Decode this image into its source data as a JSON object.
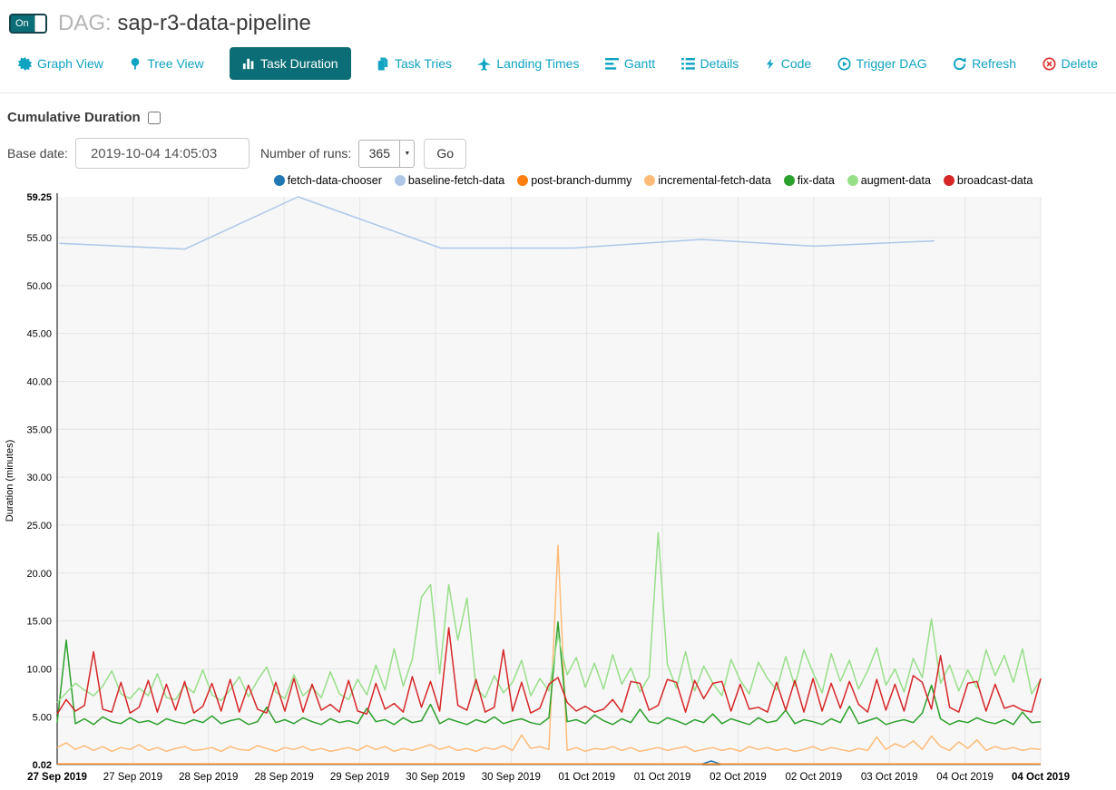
{
  "header": {
    "toggle_label": "On",
    "dag_prefix": "DAG:",
    "dag_name": "sap-r3-data-pipeline"
  },
  "nav": {
    "items": [
      {
        "label": "Graph View"
      },
      {
        "label": "Tree View"
      },
      {
        "label": "Task Duration",
        "active": true
      },
      {
        "label": "Task Tries"
      },
      {
        "label": "Landing Times"
      },
      {
        "label": "Gantt"
      },
      {
        "label": "Details"
      },
      {
        "label": "Code"
      },
      {
        "label": "Trigger DAG"
      },
      {
        "label": "Refresh"
      },
      {
        "label": "Delete"
      }
    ]
  },
  "controls": {
    "cumulative_label": "Cumulative Duration",
    "cumulative_checked": false,
    "base_date_label": "Base date:",
    "base_date_value": "2019-10-04 14:05:03",
    "num_runs_label": "Number of runs:",
    "num_runs_value": "365",
    "go_label": "Go"
  },
  "colors": {
    "link": "#0fa3c2",
    "active_tab_bg": "#0b6d76",
    "delete_icon_red": "#d9342b",
    "chart_bg": "#f7f7f7",
    "grid": "#e5e5e5",
    "axis": "#000000"
  },
  "chart_data": {
    "type": "line",
    "title": "",
    "xlabel": "",
    "ylabel": "Duration (minutes)",
    "ylim": [
      0.02,
      59.25
    ],
    "grid": true,
    "legend_position": "top-center",
    "y_ticks": [
      {
        "v": 59.25,
        "label": "59.25",
        "bold": true
      },
      {
        "v": 55,
        "label": "55.00"
      },
      {
        "v": 50,
        "label": "50.00"
      },
      {
        "v": 45,
        "label": "45.00"
      },
      {
        "v": 40,
        "label": "40.00"
      },
      {
        "v": 35,
        "label": "35.00"
      },
      {
        "v": 30,
        "label": "30.00"
      },
      {
        "v": 25,
        "label": "25.00"
      },
      {
        "v": 20,
        "label": "20.00"
      },
      {
        "v": 15,
        "label": "15.00"
      },
      {
        "v": 10,
        "label": "10.00"
      },
      {
        "v": 5,
        "label": "5.00"
      },
      {
        "v": 0.02,
        "label": "0.02",
        "bold": true
      }
    ],
    "x_ticks": [
      {
        "label": "27 Sep 2019",
        "bold": true
      },
      {
        "label": "27 Sep 2019"
      },
      {
        "label": "28 Sep 2019"
      },
      {
        "label": "28 Sep 2019"
      },
      {
        "label": "29 Sep 2019"
      },
      {
        "label": "30 Sep 2019"
      },
      {
        "label": "30 Sep 2019"
      },
      {
        "label": "01 Oct 2019"
      },
      {
        "label": "01 Oct 2019"
      },
      {
        "label": "02 Oct 2019"
      },
      {
        "label": "02 Oct 2019"
      },
      {
        "label": "03 Oct 2019"
      },
      {
        "label": "04 Oct 2019"
      },
      {
        "label": "04 Oct 2019",
        "bold": true
      }
    ],
    "series": [
      {
        "name": "fetch-data-chooser",
        "color": "#1f77b4",
        "x": [
          0,
          0.655,
          0.665,
          0.675,
          1
        ],
        "values": [
          0.05,
          0.05,
          0.4,
          0.05,
          0.05
        ]
      },
      {
        "name": "baseline-fetch-data",
        "color": "#aec7e8",
        "x": [
          0.002,
          0.13,
          0.245,
          0.39,
          0.525,
          0.655,
          0.77,
          0.892
        ],
        "values": [
          54.4,
          53.8,
          59.25,
          53.9,
          53.9,
          54.8,
          54.1,
          54.65
        ]
      },
      {
        "name": "post-branch-dummy",
        "color": "#ff7f0e",
        "x": [
          0,
          1
        ],
        "values": [
          0.08,
          0.08
        ]
      },
      {
        "name": "incremental-fetch-data",
        "color": "#ffbb78",
        "values": [
          1.8,
          2.3,
          1.6,
          2.0,
          1.5,
          1.9,
          1.4,
          1.8,
          1.6,
          2.1,
          1.5,
          1.8,
          1.4,
          1.7,
          1.9,
          1.5,
          1.6,
          1.8,
          1.4,
          1.9,
          1.6,
          1.5,
          2.0,
          1.7,
          1.4,
          1.8,
          1.6,
          1.9,
          1.5,
          1.7,
          1.4,
          1.6,
          1.8,
          1.5,
          2.0,
          1.6,
          1.9,
          1.4,
          1.7,
          1.5,
          1.8,
          2.1,
          1.6,
          1.9,
          1.5,
          1.7,
          1.4,
          1.8,
          1.6,
          2.0,
          1.5,
          3.1,
          1.7,
          1.9,
          1.6,
          22.9,
          1.5,
          1.8,
          1.4,
          1.7,
          1.6,
          1.9,
          1.5,
          1.8,
          1.4,
          1.6,
          1.8,
          1.5,
          1.7,
          1.9,
          1.4,
          1.6,
          1.8,
          1.5,
          1.7,
          1.4,
          1.9,
          1.6,
          1.8,
          1.5,
          1.7,
          1.4,
          1.6,
          1.9,
          1.5,
          1.8,
          1.6,
          1.4,
          1.7,
          1.5,
          2.9,
          1.6,
          2.2,
          1.8,
          2.5,
          1.6,
          3.0,
          1.9,
          1.5,
          2.4,
          1.7,
          2.6,
          1.5,
          1.9,
          1.6,
          1.8,
          1.5,
          1.7,
          1.6
        ]
      },
      {
        "name": "fix-data",
        "color": "#2ca02c",
        "values": [
          4.4,
          13.0,
          4.3,
          4.8,
          4.2,
          5.0,
          4.5,
          4.3,
          4.9,
          4.4,
          4.6,
          4.2,
          4.8,
          4.5,
          4.3,
          4.7,
          4.4,
          5.1,
          4.3,
          4.6,
          4.8,
          4.2,
          4.5,
          6.0,
          4.4,
          4.7,
          4.3,
          4.9,
          4.5,
          4.2,
          4.8,
          4.4,
          4.6,
          4.3,
          5.9,
          4.5,
          4.7,
          4.2,
          4.9,
          4.4,
          4.6,
          6.3,
          4.3,
          4.8,
          4.5,
          4.2,
          4.7,
          4.4,
          5.0,
          4.3,
          4.6,
          4.8,
          4.4,
          4.2,
          4.9,
          14.9,
          4.5,
          4.7,
          4.3,
          5.2,
          4.6,
          4.2,
          4.8,
          4.4,
          5.8,
          4.5,
          4.3,
          4.9,
          4.6,
          4.2,
          4.7,
          4.4,
          5.3,
          4.3,
          4.8,
          4.5,
          4.2,
          4.9,
          4.4,
          4.6,
          5.7,
          4.3,
          4.7,
          4.5,
          4.2,
          4.8,
          4.4,
          6.1,
          4.3,
          4.6,
          4.9,
          4.2,
          4.5,
          4.7,
          4.4,
          5.4,
          8.3,
          4.8,
          4.2,
          4.6,
          4.4,
          4.9,
          4.5,
          4.3,
          4.7,
          4.2,
          5.5,
          4.4,
          4.5
        ]
      },
      {
        "name": "augment-data",
        "color": "#98df8a",
        "values": [
          6.5,
          7.5,
          8.5,
          7.8,
          7.2,
          8.2,
          9.8,
          7.4,
          6.9,
          8.0,
          7.2,
          9.5,
          7.0,
          6.8,
          8.3,
          7.5,
          9.9,
          7.3,
          6.7,
          7.8,
          9.2,
          7.1,
          8.8,
          10.2,
          7.6,
          6.9,
          9.4,
          7.2,
          8.1,
          7.0,
          9.7,
          7.4,
          6.8,
          8.9,
          7.3,
          10.4,
          7.8,
          12.1,
          8.2,
          11.0,
          17.5,
          18.8,
          9.5,
          18.8,
          13.0,
          17.4,
          8.0,
          7.0,
          9.3,
          7.5,
          8.6,
          10.9,
          7.2,
          9.0,
          7.7,
          13.5,
          9.4,
          11.2,
          8.1,
          10.6,
          7.9,
          11.5,
          8.4,
          10.1,
          7.6,
          9.2,
          24.2,
          10.5,
          8.0,
          11.8,
          7.7,
          10.3,
          8.5,
          7.2,
          11.0,
          8.8,
          7.4,
          10.7,
          9.0,
          7.8,
          11.3,
          8.2,
          12.0,
          9.6,
          7.5,
          11.6,
          8.7,
          10.9,
          7.9,
          9.8,
          12.2,
          8.3,
          10.0,
          7.6,
          11.1,
          9.1,
          15.2,
          8.5,
          10.4,
          7.7,
          9.9,
          8.0,
          12.0,
          9.3,
          11.4,
          8.6,
          12.1,
          7.4,
          8.9
        ]
      },
      {
        "name": "broadcast-data",
        "color": "#d62728",
        "values": [
          5.3,
          6.8,
          5.6,
          6.2,
          11.8,
          5.8,
          5.5,
          8.6,
          5.4,
          6.0,
          8.8,
          5.5,
          8.4,
          5.7,
          8.7,
          5.4,
          6.1,
          8.5,
          5.6,
          8.9,
          5.5,
          8.3,
          5.8,
          5.4,
          8.6,
          5.6,
          9.0,
          5.5,
          8.4,
          5.7,
          6.3,
          5.5,
          8.8,
          5.6,
          5.3,
          8.5,
          5.8,
          6.4,
          5.5,
          9.2,
          6.0,
          8.7,
          5.6,
          14.3,
          6.2,
          5.7,
          8.9,
          5.5,
          6.0,
          12.0,
          5.6,
          8.6,
          5.4,
          5.9,
          8.4,
          9.1,
          6.5,
          5.6,
          6.1,
          5.5,
          5.8,
          6.8,
          5.5,
          8.7,
          8.5,
          5.7,
          6.2,
          8.9,
          8.6,
          5.5,
          8.8,
          6.9,
          8.5,
          8.7,
          5.6,
          8.4,
          5.8,
          6.0,
          5.5,
          8.6,
          5.7,
          8.8,
          5.5,
          9.0,
          5.6,
          8.5,
          5.9,
          8.7,
          6.3,
          5.5,
          8.9,
          5.7,
          8.4,
          5.6,
          9.3,
          8.6,
          5.8,
          11.4,
          6.0,
          5.5,
          8.5,
          8.7,
          5.6,
          8.4,
          5.9,
          6.2,
          5.7,
          5.5,
          9.0
        ]
      }
    ]
  }
}
